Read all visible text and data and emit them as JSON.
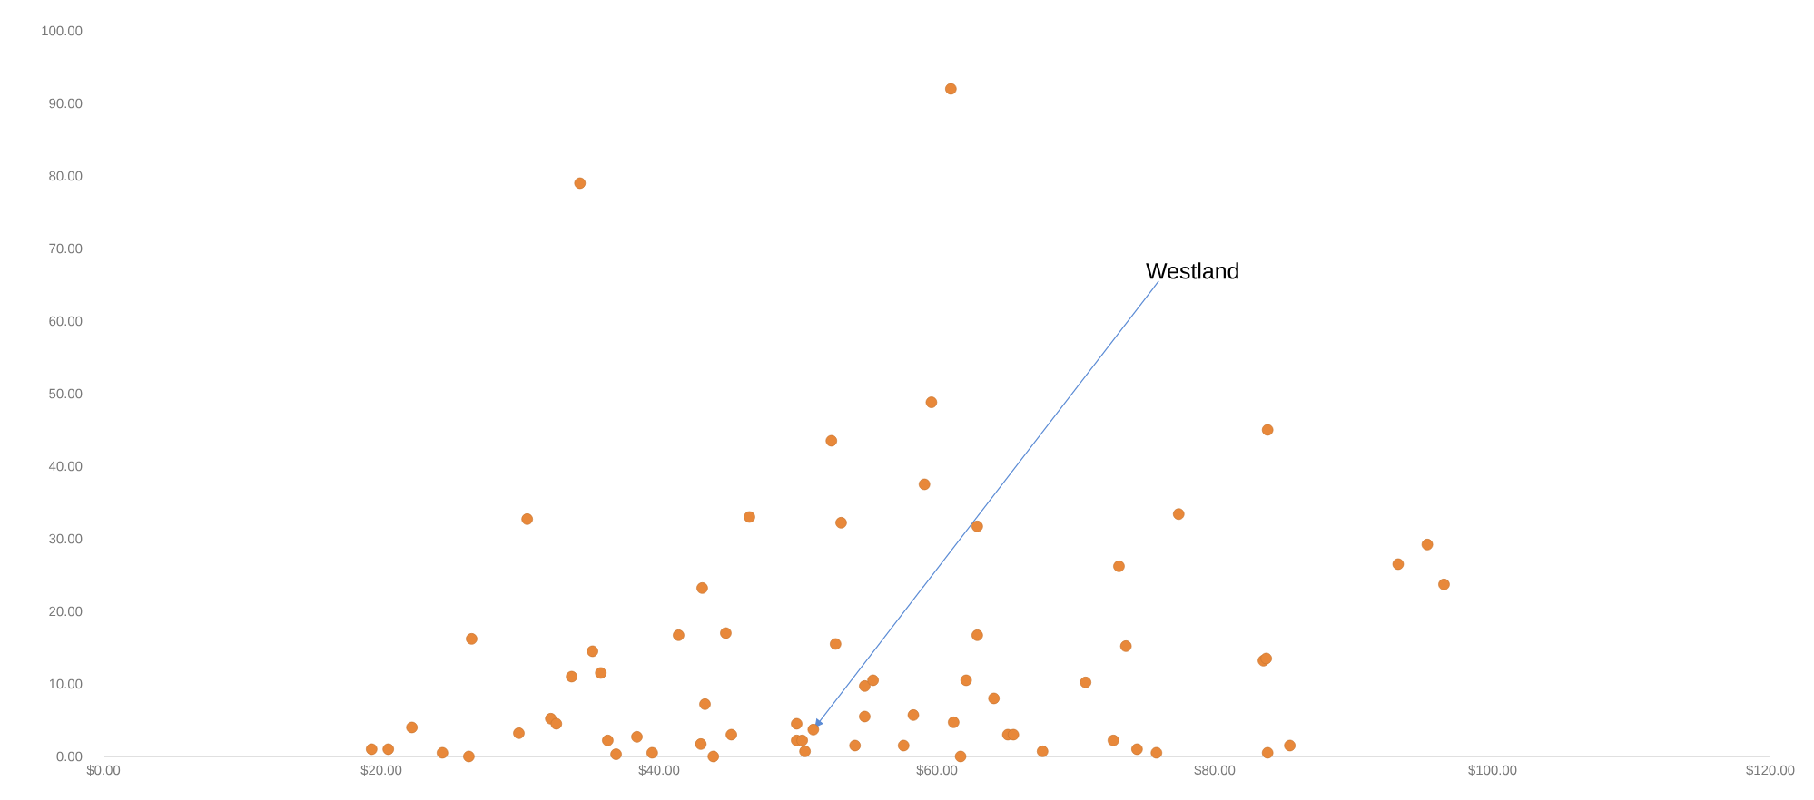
{
  "chart_data": {
    "type": "scatter",
    "x": [
      19.3,
      20.5,
      22.2,
      24.4,
      26.3,
      26.5,
      29.9,
      30.5,
      32.2,
      32.6,
      33.7,
      34.3,
      35.2,
      35.8,
      36.3,
      36.9,
      38.4,
      39.5,
      41.4,
      43.1,
      43.3,
      43.0,
      43.9,
      44.8,
      45.2,
      46.5,
      49.9,
      51.1,
      49.9,
      50.3,
      50.5,
      52.4,
      53.1,
      52.7,
      54.8,
      55.4,
      54.8,
      54.1,
      57.6,
      58.3,
      59.1,
      59.6,
      61.0,
      61.2,
      61.7,
      62.1,
      62.9,
      62.9,
      64.1,
      65.1,
      65.5,
      67.6,
      70.7,
      72.7,
      73.1,
      73.6,
      74.4,
      75.8,
      77.4,
      83.5,
      83.7,
      83.8,
      83.8,
      85.4,
      93.2,
      95.3,
      96.5
    ],
    "values": [
      1.0,
      1.0,
      4.0,
      0.5,
      0,
      16.2,
      3.2,
      32.7,
      5.2,
      4.5,
      11,
      79,
      14.5,
      11.5,
      2.2,
      0.3,
      2.7,
      0.5,
      16.7,
      23.2,
      7.2,
      1.7,
      0,
      17,
      3,
      33,
      4.5,
      3.7,
      2.2,
      2.2,
      0.7,
      43.5,
      32.2,
      15.5,
      9.7,
      10.5,
      5.5,
      1.5,
      1.5,
      5.7,
      37.5,
      48.8,
      92,
      4.7,
      0,
      10.5,
      31.7,
      16.7,
      8,
      3,
      3,
      0.7,
      10.2,
      2.2,
      26.2,
      15.2,
      1.0,
      0.5,
      33.4,
      13.2,
      13.5,
      45,
      0.5,
      1.5,
      26.5,
      29.2,
      23.7
    ],
    "color": "#e8883a",
    "marker": "circle",
    "xlim": [
      0,
      120
    ],
    "xticks": [
      {
        "value": 0,
        "label": "$0.00"
      },
      {
        "value": 20,
        "label": "$20.00"
      },
      {
        "value": 40,
        "label": "$40.00"
      },
      {
        "value": 60,
        "label": "$60.00"
      },
      {
        "value": 80,
        "label": "$80.00"
      },
      {
        "value": 100,
        "label": "$100.00"
      },
      {
        "value": 120,
        "label": "$120.00"
      }
    ],
    "ylim": [
      0,
      100
    ],
    "yticks": [
      {
        "value": 0,
        "label": "0.00"
      },
      {
        "value": 10,
        "label": "10.00"
      },
      {
        "value": 20,
        "label": "20.00"
      },
      {
        "value": 30,
        "label": "30.00"
      },
      {
        "value": 40,
        "label": "40.00"
      },
      {
        "value": 50,
        "label": "50.00"
      },
      {
        "value": 60,
        "label": "60.00"
      },
      {
        "value": 70,
        "label": "70.00"
      },
      {
        "value": 80,
        "label": "80.00"
      },
      {
        "value": 90,
        "label": "90.00"
      },
      {
        "value": 100,
        "label": "100.00"
      }
    ],
    "annotations": [
      {
        "text": "Westland",
        "x": 51.1,
        "y": 3.7
      }
    ]
  }
}
